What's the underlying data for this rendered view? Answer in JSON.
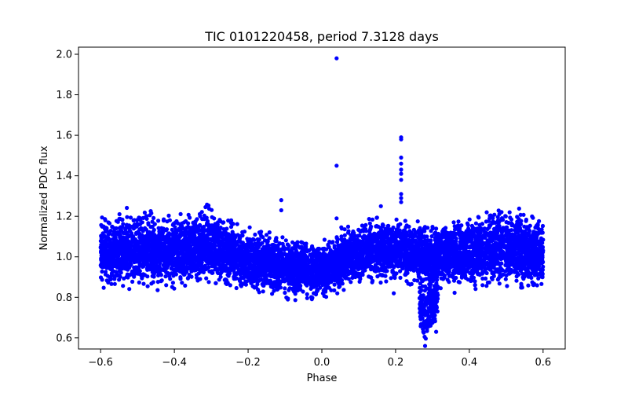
{
  "chart_data": {
    "type": "scatter",
    "title": "TIC 0101220458, period 7.3128 days",
    "xlabel": "Phase",
    "ylabel": "Normalized PDC flux",
    "xlim": [
      -0.66,
      0.66
    ],
    "ylim": [
      0.545,
      2.035
    ],
    "xticks": [
      -0.6,
      -0.4,
      -0.2,
      0.0,
      0.2,
      0.4,
      0.6
    ],
    "xtick_labels": [
      "−0.6",
      "−0.4",
      "−0.2",
      "0.0",
      "0.2",
      "0.4",
      "0.6"
    ],
    "yticks": [
      0.6,
      0.8,
      1.0,
      1.2,
      1.4,
      1.6,
      1.8,
      2.0
    ],
    "ytick_labels": [
      "0.6",
      "0.8",
      "1.0",
      "1.2",
      "1.4",
      "1.6",
      "1.8",
      "2.0"
    ],
    "grid": false,
    "marker_color": "#0000ff",
    "series": [
      {
        "name": "flux",
        "baseline_profile": {
          "phase": [
            -0.6,
            -0.5,
            -0.4,
            -0.3,
            -0.2,
            -0.1,
            0.0,
            0.1,
            0.2,
            0.3,
            0.4,
            0.5,
            0.6
          ],
          "center_flux": [
            1.01,
            1.04,
            1.02,
            1.05,
            0.98,
            0.95,
            0.93,
            1.02,
            1.04,
            1.0,
            1.02,
            1.05,
            1.01
          ],
          "scatter_halfwidth": [
            0.15,
            0.16,
            0.15,
            0.17,
            0.13,
            0.12,
            0.13,
            0.13,
            0.14,
            0.13,
            0.15,
            0.17,
            0.14
          ]
        },
        "dip": {
          "phase": [
            0.265,
            0.275,
            0.285,
            0.295,
            0.305,
            0.315
          ],
          "flux": [
            0.72,
            0.68,
            0.66,
            0.7,
            0.72,
            0.8
          ]
        },
        "notable_points": [
          {
            "x": 0.04,
            "y": 1.98
          },
          {
            "x": 0.04,
            "y": 1.45
          },
          {
            "x": 0.215,
            "y": 1.59
          },
          {
            "x": 0.215,
            "y": 1.58
          },
          {
            "x": 0.215,
            "y": 1.49
          },
          {
            "x": 0.215,
            "y": 1.46
          },
          {
            "x": 0.215,
            "y": 1.43
          },
          {
            "x": 0.215,
            "y": 1.41
          },
          {
            "x": 0.215,
            "y": 1.38
          },
          {
            "x": 0.215,
            "y": 1.31
          },
          {
            "x": 0.215,
            "y": 1.29
          },
          {
            "x": 0.215,
            "y": 1.27
          },
          {
            "x": -0.11,
            "y": 1.28
          },
          {
            "x": -0.11,
            "y": 1.23
          },
          {
            "x": 0.16,
            "y": 1.25
          },
          {
            "x": 0.04,
            "y": 1.19
          },
          {
            "x": 0.28,
            "y": 0.56
          },
          {
            "x": 0.195,
            "y": 0.82
          },
          {
            "x": 0.31,
            "y": 0.63
          },
          {
            "x": 0.275,
            "y": 0.63
          }
        ]
      }
    ]
  }
}
